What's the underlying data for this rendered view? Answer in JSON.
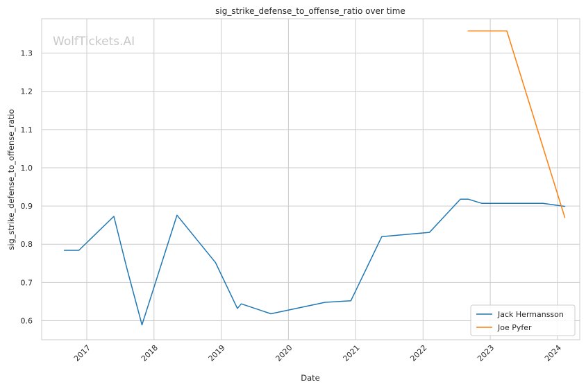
{
  "chart_data": {
    "type": "line",
    "title": "sig_strike_defense_to_offense_ratio over time",
    "xlabel": "Date",
    "ylabel": "sig_strike_defense_to_offense_ratio",
    "watermark": "WolfTickets.AI",
    "x_ticks": [
      "2017",
      "2018",
      "2019",
      "2020",
      "2021",
      "2022",
      "2023",
      "2024"
    ],
    "y_ticks": [
      "0.6",
      "0.7",
      "0.8",
      "0.9",
      "1.0",
      "1.1",
      "1.2",
      "1.3"
    ],
    "xlim": [
      "2016-05-01",
      "2024-05-01"
    ],
    "ylim": [
      0.55,
      1.39
    ],
    "grid": true,
    "legend_position": "lower right",
    "series": [
      {
        "name": "Jack Hermansson",
        "color": "#1f77b4",
        "points": [
          [
            "2016-09-01",
            0.784
          ],
          [
            "2016-11-19",
            0.784
          ],
          [
            "2017-05-28",
            0.873
          ],
          [
            "2017-08-05",
            0.74
          ],
          [
            "2017-10-28",
            0.589
          ],
          [
            "2018-05-06",
            0.876
          ],
          [
            "2018-12-01",
            0.752
          ],
          [
            "2019-03-30",
            0.632
          ],
          [
            "2019-04-20",
            0.644
          ],
          [
            "2019-09-28",
            0.618
          ],
          [
            "2020-07-18",
            0.648
          ],
          [
            "2020-12-05",
            0.652
          ],
          [
            "2021-05-22",
            0.82
          ],
          [
            "2022-02-05",
            0.831
          ],
          [
            "2022-07-23",
            0.918
          ],
          [
            "2022-09-03",
            0.918
          ],
          [
            "2022-11-15",
            0.907
          ],
          [
            "2023-10-15",
            0.907
          ],
          [
            "2024-02-10",
            0.899
          ]
        ]
      },
      {
        "name": "Joe Pyfer",
        "color": "#ff7f0e",
        "points": [
          [
            "2022-09-03",
            1.358
          ],
          [
            "2023-04-01",
            1.358
          ],
          [
            "2024-02-10",
            0.87
          ]
        ]
      }
    ]
  }
}
